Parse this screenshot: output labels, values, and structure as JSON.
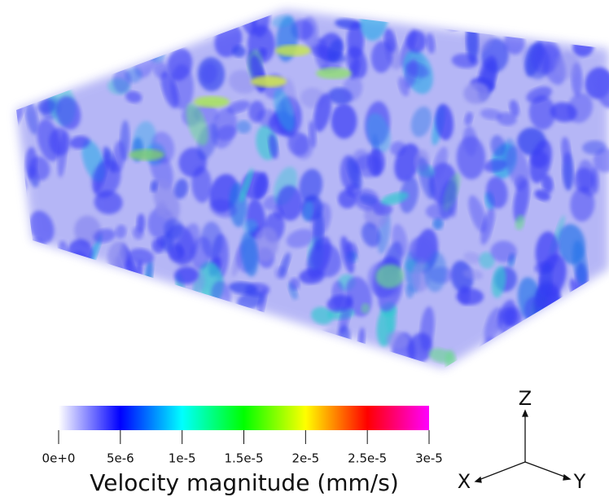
{
  "colorbar": {
    "title": "Velocity magnitude (mm/s)",
    "lim": [
      0,
      3e-05
    ],
    "ticks": [
      {
        "value": 0,
        "label": "0e+0"
      },
      {
        "value": 5e-06,
        "label": "5e-6"
      },
      {
        "value": 1e-05,
        "label": "1e-5"
      },
      {
        "value": 1.5e-05,
        "label": "1.5e-5"
      },
      {
        "value": 2e-05,
        "label": "2e-5"
      },
      {
        "value": 2.5e-05,
        "label": "2.5e-5"
      },
      {
        "value": 3e-05,
        "label": "3e-5"
      }
    ],
    "colors": [
      "#ffffff",
      "#0000ff",
      "#00ffff",
      "#00ff00",
      "#ffff00",
      "#ff0000",
      "#ff00ff"
    ]
  },
  "axes_triad": {
    "z": "Z",
    "x": "X",
    "y": "Y"
  }
}
